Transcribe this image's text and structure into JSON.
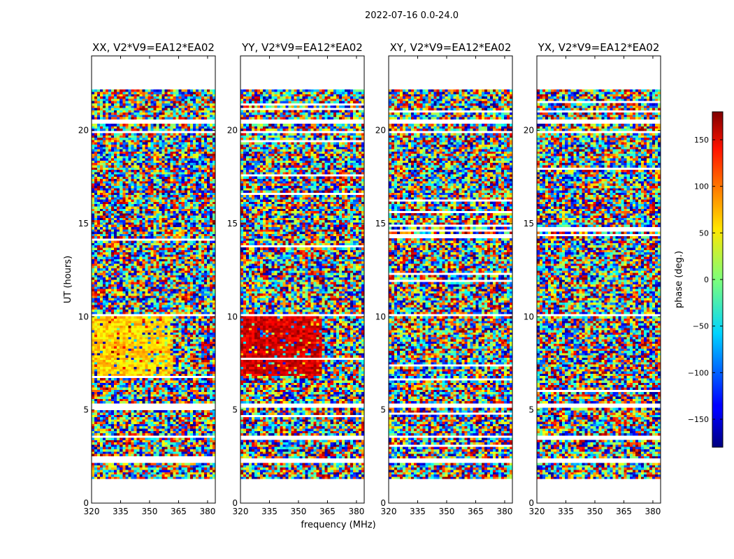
{
  "figure_title": "2022-07-16 0.0-24.0",
  "chart_data": {
    "type": "heatmap",
    "suptitle": "2022-07-16 0.0-24.0",
    "xlabel": "frequency (MHz)",
    "ylabel": "UT (hours)",
    "xlim": [
      320,
      384
    ],
    "ylim": [
      0,
      24
    ],
    "xticks": [
      320,
      335,
      350,
      365,
      380
    ],
    "yticks": [
      0,
      5,
      10,
      15,
      20
    ],
    "panels": [
      {
        "title": "XX, V2*V9=EA12*EA02",
        "coherent_phase_deg": 60
      },
      {
        "title": "YY, V2*V9=EA12*EA02",
        "coherent_phase_deg": 150
      },
      {
        "title": "XY, V2*V9=EA12*EA02",
        "coherent_phase_deg": null
      },
      {
        "title": "YX, V2*V9=EA12*EA02",
        "coherent_phase_deg": null
      }
    ],
    "data_coverage_ut": [
      1.3,
      22.2
    ],
    "flagged_ut_bands": [
      [
        2.15,
        2.3
      ],
      [
        3.4,
        3.55
      ],
      [
        5.05,
        5.3
      ],
      [
        9.95,
        10.15
      ],
      [
        19.75,
        19.95
      ],
      [
        20.35,
        20.5
      ]
    ],
    "coherent_ut_range": [
      6.8,
      10.0
    ],
    "coherent_freq_range_mhz": [
      320,
      362
    ],
    "colorbar": {
      "label": "phase (deg.)",
      "range": [
        -180,
        180
      ],
      "ticks": [
        150,
        100,
        50,
        0,
        -50,
        -100,
        -150
      ],
      "tick_labels": [
        "150",
        "100",
        "50",
        "0",
        "−50",
        "−100",
        "−150"
      ],
      "colormap": "jet"
    }
  }
}
